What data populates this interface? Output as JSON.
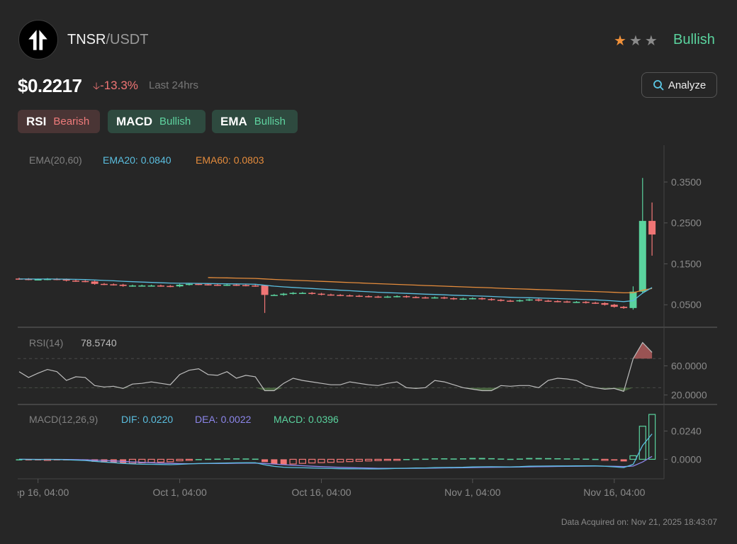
{
  "header": {
    "base": "TNSR",
    "quote": "/USDT",
    "rating_stars": 1,
    "rating_max": 3,
    "sentiment": "Bullish",
    "price": "$0.2217",
    "change": "-13.3%",
    "period": "Last 24hrs",
    "analyze_label": "Analyze"
  },
  "badges": [
    {
      "name": "RSI",
      "status": "Bearish"
    },
    {
      "name": "MACD",
      "status": "Bullish"
    },
    {
      "name": "EMA",
      "status": "Bullish"
    }
  ],
  "colors": {
    "up": "#5ad39e",
    "down": "#f07575",
    "ema20": "#5bbfe0",
    "ema60": "#e58c3c",
    "dea": "#8c86ea",
    "star_on": "#f0913a",
    "star_off": "#8a8a8a"
  },
  "chart_data": {
    "type": "candlestick",
    "interval": "1D",
    "x_tick_labels": [
      "Sep 16, 04:00",
      "Oct 1, 04:00",
      "Oct 16, 04:00",
      "Nov 1, 04:00",
      "Nov 16, 04:00"
    ],
    "x_tick_index": [
      2,
      17,
      32,
      48,
      63
    ],
    "closes": [
      0.113,
      0.112,
      0.112,
      0.113,
      0.112,
      0.109,
      0.108,
      0.107,
      0.101,
      0.1,
      0.099,
      0.096,
      0.097,
      0.097,
      0.097,
      0.096,
      0.095,
      0.099,
      0.101,
      0.1,
      0.099,
      0.098,
      0.099,
      0.098,
      0.097,
      0.096,
      0.074,
      0.074,
      0.077,
      0.079,
      0.079,
      0.077,
      0.075,
      0.074,
      0.073,
      0.072,
      0.071,
      0.07,
      0.069,
      0.07,
      0.071,
      0.069,
      0.068,
      0.067,
      0.068,
      0.066,
      0.064,
      0.065,
      0.066,
      0.064,
      0.062,
      0.06,
      0.059,
      0.061,
      0.063,
      0.06,
      0.059,
      0.058,
      0.057,
      0.057,
      0.055,
      0.054,
      0.05,
      0.045,
      0.042,
      0.082,
      0.255,
      0.2217
    ],
    "overrides": {
      "26": {
        "o": 0.097,
        "h": 0.098,
        "l": 0.03,
        "c": 0.074
      },
      "65": {
        "o": 0.042,
        "h": 0.095,
        "l": 0.038,
        "c": 0.082
      },
      "66": {
        "o": 0.082,
        "h": 0.36,
        "l": 0.078,
        "c": 0.255
      },
      "67": {
        "o": 0.255,
        "h": 0.3,
        "l": 0.17,
        "c": 0.2217
      }
    },
    "price_axis": {
      "ticks": [
        "0.3500",
        "0.2500",
        "0.1500",
        "0.0500"
      ],
      "values": [
        0.35,
        0.25,
        0.15,
        0.05
      ],
      "range": [
        -0.005,
        0.44
      ]
    },
    "ema": {
      "label": "EMA(20,60)",
      "ema20_label": "EMA20: 0.0840",
      "ema60_label": "EMA60: 0.0803",
      "ema60_start": 20
    },
    "rsi": {
      "label": "RSI(14)",
      "value_label": "78.5740",
      "values": [
        52,
        44,
        50,
        55,
        52,
        40,
        45,
        44,
        33,
        31,
        32,
        29,
        35,
        36,
        38,
        36,
        34,
        48,
        54,
        56,
        48,
        47,
        52,
        43,
        47,
        45,
        26,
        26,
        36,
        43,
        40,
        38,
        36,
        34,
        34,
        38,
        36,
        34,
        33,
        36,
        38,
        30,
        29,
        30,
        40,
        38,
        34,
        30,
        28,
        26,
        26,
        33,
        32,
        33,
        33,
        30,
        40,
        43,
        42,
        40,
        33,
        30,
        28,
        29,
        25,
        70,
        92,
        78.574
      ],
      "ticks": [
        "60.0000",
        "20.0000"
      ],
      "tick_values": [
        60,
        20
      ],
      "levels": [
        70,
        30
      ],
      "range": [
        7,
        112
      ]
    },
    "macd": {
      "label": "MACD(12,26,9)",
      "dif_label": "DIF: 0.0220",
      "dea_label": "DEA: 0.0022",
      "macd_label": "MACD: 0.0396",
      "ticks": [
        "0.0240",
        "0.0000"
      ],
      "tick_values": [
        0.024,
        0
      ],
      "range": [
        -0.016,
        0.046
      ]
    }
  },
  "footer": "Data Acquired on: Nov 21, 2025 18:43:07"
}
